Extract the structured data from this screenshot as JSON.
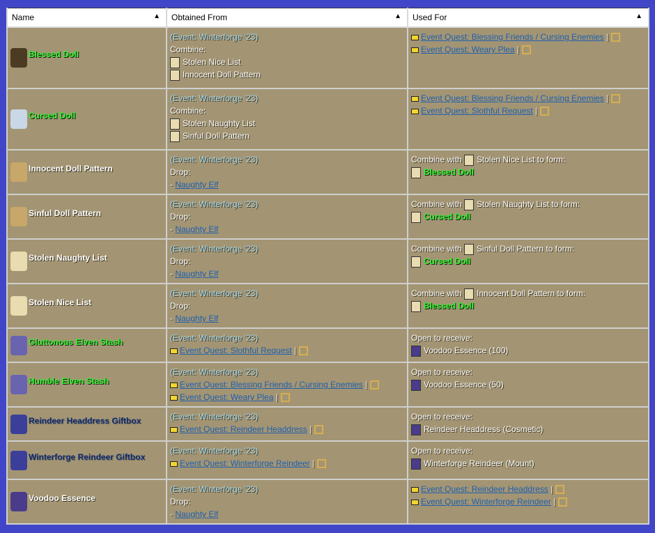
{
  "headers": [
    "Name",
    "Obtained From",
    "Used For"
  ],
  "rows": [
    {
      "name": "Blessed Doll",
      "color": "green",
      "icon": "blessed-doll-icon",
      "obtained": {
        "event": "(Event: Winterforge '23)",
        "type": "Combine:",
        "items": [
          "Stolen Nice List",
          "Innocent Doll Pattern"
        ]
      },
      "used": {
        "quests": [
          "Event Quest: Blessing Friends / Cursing Enemies",
          "Event Quest: Weary Plea"
        ]
      }
    },
    {
      "name": "Cursed Doll",
      "color": "green",
      "icon": "cursed-doll-icon",
      "obtained": {
        "event": "(Event: Winterforge '23)",
        "type": "Combine:",
        "items": [
          "Stolen Naughty List",
          "Sinful Doll Pattern"
        ]
      },
      "used": {
        "quests": [
          "Event Quest: Blessing Friends / Cursing Enemies",
          "Event Quest: Slothful Request"
        ]
      }
    },
    {
      "name": "Innocent Doll Pattern",
      "color": "white",
      "icon": "doll-pattern-icon",
      "obtained": {
        "event": "(Event: Winterforge '23)",
        "type": "Drop:",
        "drop": "Naughty Elf"
      },
      "used": {
        "combine": "Combine with",
        "with": "Stolen Nice List",
        "form": "to form:",
        "result": "Blessed Doll"
      }
    },
    {
      "name": "Sinful Doll Pattern",
      "color": "white",
      "icon": "doll-pattern-icon",
      "obtained": {
        "event": "(Event: Winterforge '23)",
        "type": "Drop:",
        "drop": "Naughty Elf"
      },
      "used": {
        "combine": "Combine with",
        "with": "Stolen Naughty List",
        "form": "to form:",
        "result": "Cursed Doll"
      }
    },
    {
      "name": "Stolen Naughty List",
      "color": "white",
      "icon": "scroll-icon",
      "obtained": {
        "event": "(Event: Winterforge '23)",
        "type": "Drop:",
        "drop": "Naughty Elf"
      },
      "used": {
        "combine": "Combine with",
        "with": "Sinful Doll Pattern",
        "form": "to form:",
        "result": "Cursed Doll"
      }
    },
    {
      "name": "Stolen Nice List",
      "color": "white",
      "icon": "scroll-icon",
      "obtained": {
        "event": "(Event: Winterforge '23)",
        "type": "Drop:",
        "drop": "Naughty Elf"
      },
      "used": {
        "combine": "Combine with",
        "with": "Innocent Doll Pattern",
        "form": "to form:",
        "result": "Blessed Doll"
      }
    },
    {
      "name": "Gluttonous Elven Stash",
      "color": "green",
      "icon": "stash-icon",
      "obtained": {
        "event": "(Event: Winterforge '23)",
        "quests": [
          "Event Quest: Slothful Request"
        ]
      },
      "used": {
        "open": "Open to receive:",
        "receive": "Voodoo Essence (100)"
      }
    },
    {
      "name": "Humble Elven Stash",
      "color": "green",
      "icon": "stash-icon",
      "obtained": {
        "event": "(Event: Winterforge '23)",
        "quests": [
          "Event Quest: Blessing Friends / Cursing Enemies",
          "Event Quest: Weary Plea"
        ]
      },
      "used": {
        "open": "Open to receive:",
        "receive": "Voodoo Essence (50)"
      }
    },
    {
      "name": "Reindeer Headdress Giftbox",
      "color": "navy",
      "icon": "giftbox-icon",
      "obtained": {
        "event": "(Event: Winterforge '23)",
        "quests": [
          "Event Quest: Reindeer Headdress"
        ]
      },
      "used": {
        "open": "Open to receive:",
        "receive": "Reindeer Headdress (Cosmetic)"
      }
    },
    {
      "name": "Winterforge Reindeer Giftbox",
      "color": "navy",
      "icon": "giftbox-icon",
      "obtained": {
        "event": "(Event: Winterforge '23)",
        "quests": [
          "Event Quest: Winterforge Reindeer"
        ]
      },
      "used": {
        "open": "Open to receive:",
        "receive": "Winterforge Reindeer (Mount)"
      }
    },
    {
      "name": "Voodoo Essence",
      "color": "white",
      "icon": "voodoo-essence-icon",
      "obtained": {
        "event": "(Event: Winterforge '23)",
        "type": "Drop:",
        "drop": "Naughty Elf"
      },
      "used": {
        "quests": [
          "Event Quest: Reindeer Headdress",
          "Event Quest: Winterforge Reindeer"
        ]
      }
    }
  ],
  "colors": {
    "background": "#4146c8",
    "row": "#a39573",
    "green": "#2cf52c",
    "navy": "#102a70",
    "event": "#a6dcef",
    "link": "#1f5fb0"
  }
}
